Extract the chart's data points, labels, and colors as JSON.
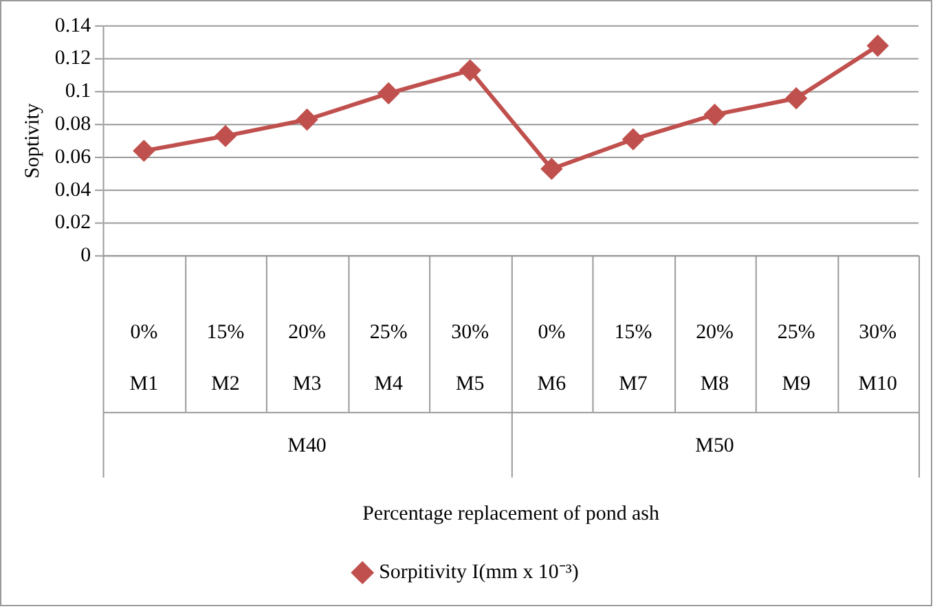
{
  "chart_data": {
    "type": "line",
    "ylabel": "Soptivity",
    "categories": [
      "0%\nM1",
      "15%\nM2",
      "20%\nM3",
      "25%\nM4",
      "30%\nM5",
      "0%\nM6",
      "15%\nM7",
      "20%\nM8",
      "25%\nM9",
      "30%\nM10"
    ],
    "series": [
      {
        "name": "Sorpitivity I(mm x 10⁻³)",
        "color": "#c0504d",
        "values": [
          0.064,
          0.073,
          0.083,
          0.099,
          0.113,
          0.053,
          0.071,
          0.086,
          0.096,
          0.128
        ]
      }
    ],
    "annotations": [
      "M40",
      "M50",
      "Percentage replacement of pond ash"
    ],
    "ylim": [
      0,
      0.14
    ],
    "yticks": [
      0,
      0.02,
      0.04,
      0.06,
      0.08,
      0.1,
      0.12,
      0.14
    ],
    "grid": "y",
    "legend": "bottom",
    "marker": "diamond",
    "line_style": "solid"
  }
}
